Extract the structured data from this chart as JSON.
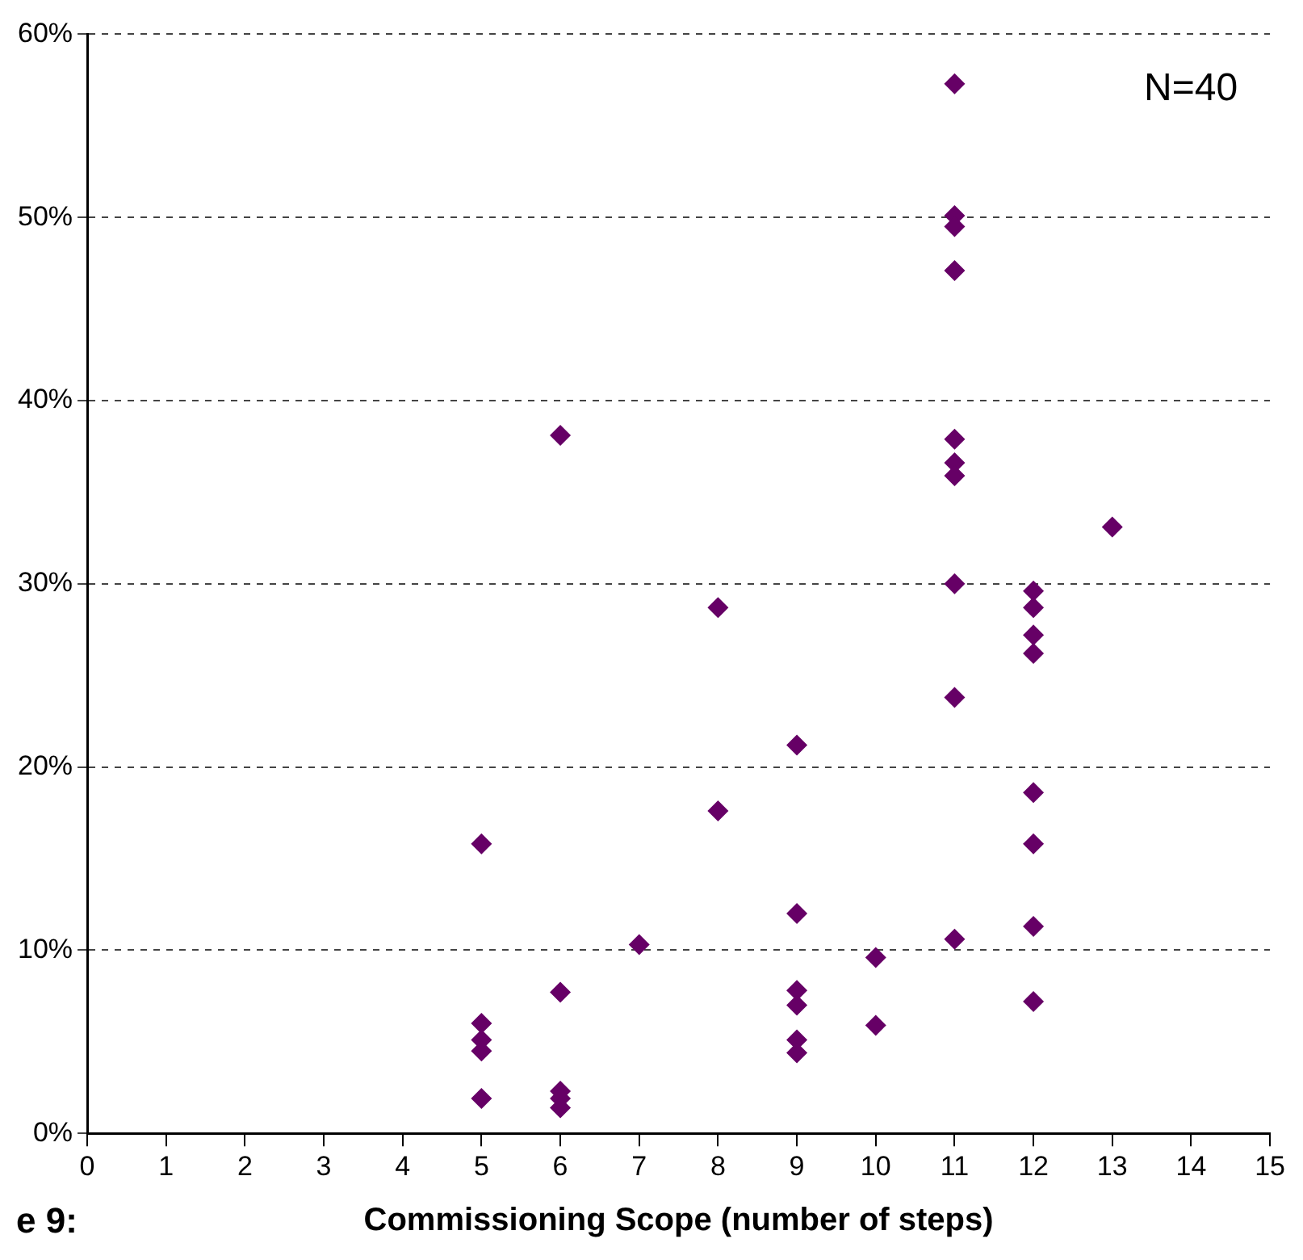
{
  "chart_data": {
    "type": "scatter",
    "xlabel": "Commissioning Scope (number of steps)",
    "annotations": [
      "N=40",
      "e 9:"
    ],
    "x": [
      5,
      5,
      5,
      5,
      5,
      6,
      6,
      6,
      6,
      6,
      7,
      8,
      8,
      9,
      9,
      9,
      9,
      9,
      9,
      10,
      10,
      11,
      11,
      11,
      11,
      11,
      11,
      11,
      11,
      11,
      11,
      12,
      12,
      12,
      12,
      12,
      12,
      12,
      12,
      13
    ],
    "series": [
      {
        "color": "#660066",
        "values": [
          15.8,
          6.0,
          5.1,
          4.5,
          1.9,
          38.1,
          7.7,
          2.3,
          1.9,
          1.4,
          10.3,
          28.7,
          17.6,
          21.2,
          12.0,
          7.8,
          7.0,
          5.1,
          4.4,
          9.6,
          5.9,
          57.3,
          50.1,
          49.5,
          47.1,
          37.9,
          36.6,
          35.9,
          30.0,
          23.8,
          10.6,
          29.6,
          28.7,
          27.2,
          26.2,
          18.6,
          15.8,
          11.3,
          7.2,
          33.1
        ]
      }
    ],
    "xlim": [
      0,
      15
    ],
    "xticks": [
      0,
      1,
      2,
      3,
      4,
      5,
      6,
      7,
      8,
      9,
      10,
      11,
      12,
      13,
      14,
      15
    ],
    "ylim": [
      0,
      60
    ],
    "yticks": [
      {
        "value": 0,
        "label": "0%"
      },
      {
        "value": 10,
        "label": "10%"
      },
      {
        "value": 20,
        "label": "20%"
      },
      {
        "value": 30,
        "label": "30%"
      },
      {
        "value": 40,
        "label": "40%"
      },
      {
        "value": 50,
        "label": "50%"
      },
      {
        "value": 60,
        "label": "60%"
      }
    ],
    "grid": "y",
    "marker": "diamond",
    "legend": false
  }
}
